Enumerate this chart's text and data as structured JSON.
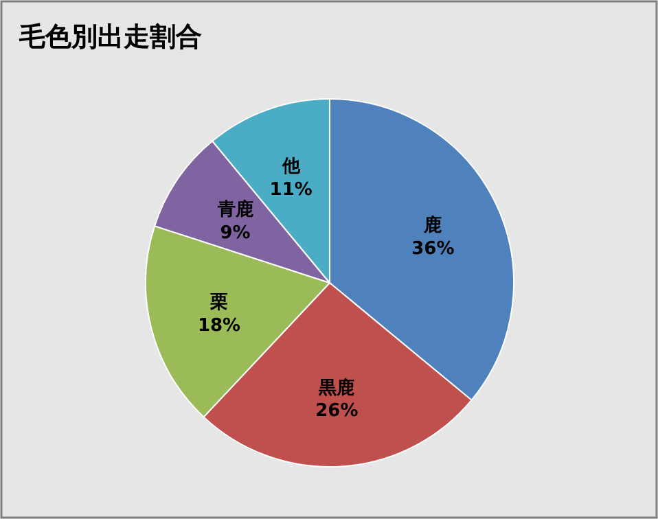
{
  "chart_data": {
    "type": "pie",
    "title": "毛色別出走割合",
    "categories": [
      "鹿",
      "黒鹿",
      "栗",
      "青鹿",
      "他"
    ],
    "values": [
      36,
      26,
      18,
      9,
      11
    ],
    "value_labels": [
      "36%",
      "26%",
      "18%",
      "9%",
      "11%"
    ],
    "colors": [
      "#4f81bd",
      "#c0504d",
      "#9bbb59",
      "#8064a2",
      "#4bacc6"
    ]
  }
}
